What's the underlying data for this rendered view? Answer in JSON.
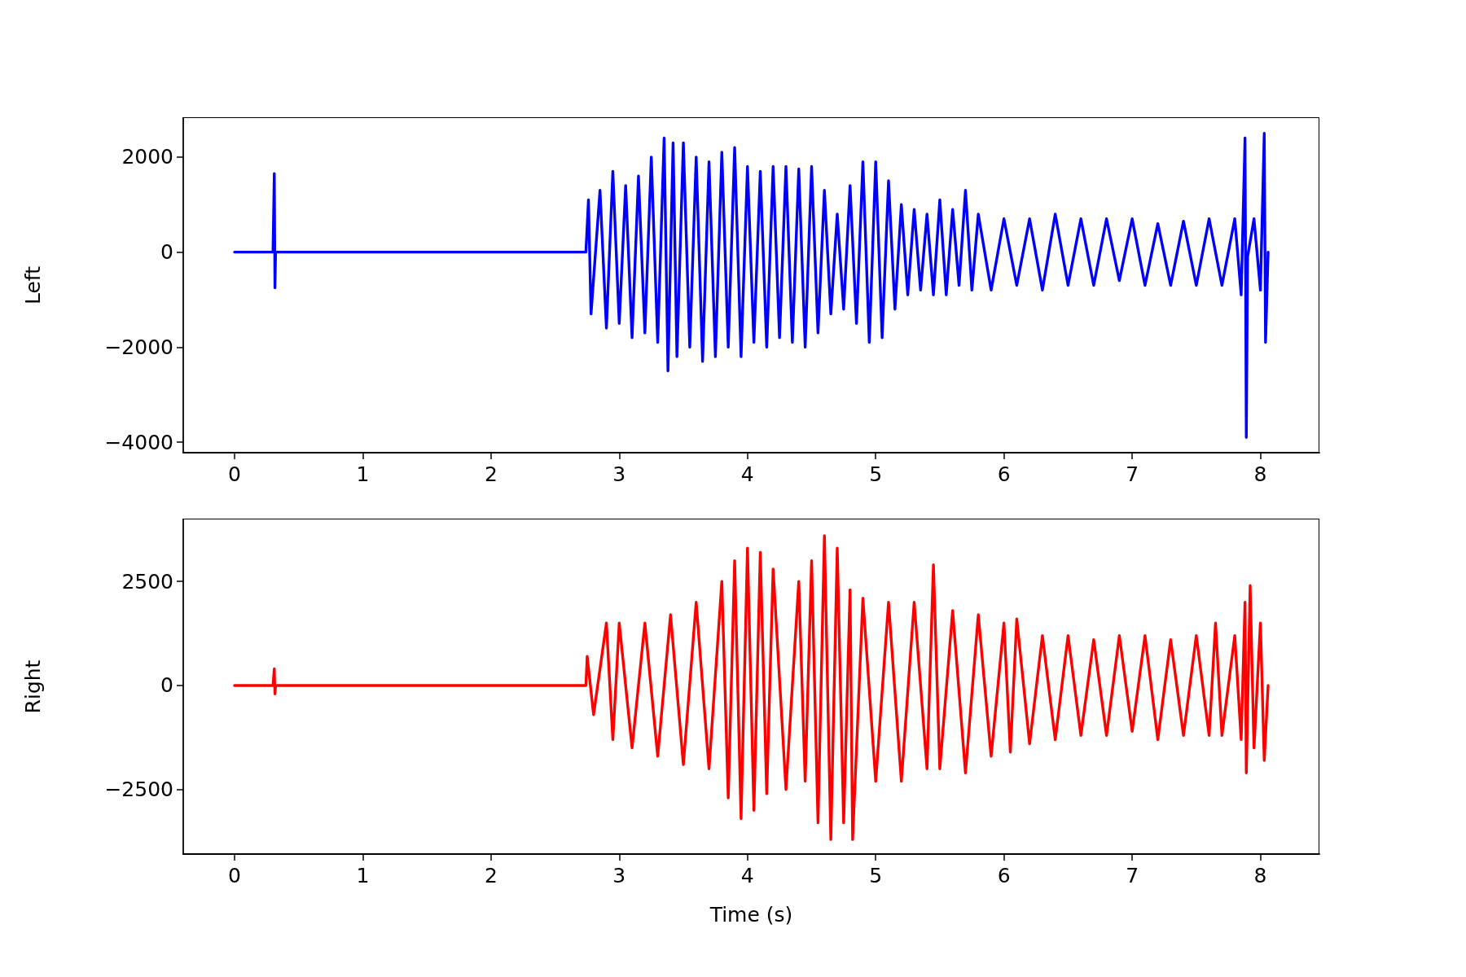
{
  "chart_data": [
    {
      "type": "line",
      "ylabel": "Left",
      "color": "#0000ff",
      "marker": "none",
      "x": [
        0,
        0.3,
        0.31,
        0.315,
        0.32,
        1.2,
        2.74,
        2.76,
        2.78,
        2.85,
        2.9,
        2.95,
        3.0,
        3.05,
        3.1,
        3.15,
        3.2,
        3.25,
        3.3,
        3.35,
        3.38,
        3.42,
        3.45,
        3.5,
        3.55,
        3.6,
        3.65,
        3.7,
        3.75,
        3.8,
        3.85,
        3.9,
        3.95,
        4.0,
        4.05,
        4.1,
        4.15,
        4.2,
        4.25,
        4.3,
        4.35,
        4.4,
        4.45,
        4.5,
        4.55,
        4.6,
        4.65,
        4.7,
        4.75,
        4.8,
        4.85,
        4.9,
        4.95,
        5.0,
        5.05,
        5.1,
        5.15,
        5.2,
        5.25,
        5.3,
        5.35,
        5.4,
        5.45,
        5.5,
        5.55,
        5.6,
        5.65,
        5.7,
        5.75,
        5.8,
        5.9,
        6.0,
        6.1,
        6.2,
        6.3,
        6.4,
        6.5,
        6.6,
        6.7,
        6.8,
        6.9,
        7.0,
        7.1,
        7.2,
        7.3,
        7.4,
        7.5,
        7.6,
        7.7,
        7.8,
        7.85,
        7.88,
        7.89,
        7.9,
        7.95,
        8.0,
        8.03,
        8.04,
        8.06
      ],
      "values": [
        0,
        0,
        1650,
        -750,
        0,
        0,
        0,
        1100,
        -1300,
        1300,
        -1600,
        1700,
        -1500,
        1400,
        -1800,
        1600,
        -1700,
        2000,
        -1900,
        2400,
        -2500,
        2300,
        -2200,
        2300,
        -2000,
        2000,
        -2300,
        1900,
        -2200,
        2100,
        -2000,
        2200,
        -2200,
        1800,
        -1900,
        1700,
        -2000,
        1800,
        -1800,
        1800,
        -1900,
        1750,
        -2000,
        1800,
        -1700,
        1300,
        -1300,
        800,
        -1200,
        1400,
        -1500,
        1900,
        -1900,
        1900,
        -1800,
        1500,
        -1200,
        1000,
        -900,
        900,
        -800,
        800,
        -900,
        1100,
        -900,
        900,
        -700,
        1300,
        -800,
        800,
        -800,
        700,
        -700,
        700,
        -800,
        800,
        -700,
        700,
        -700,
        700,
        -600,
        700,
        -700,
        600,
        -700,
        650,
        -700,
        700,
        -700,
        700,
        -900,
        2400,
        -3900,
        -100,
        700,
        -800,
        2500,
        -1900,
        0
      ],
      "xlim": [
        -0.4,
        8.46
      ],
      "ylim": [
        -4220,
        2820
      ],
      "xticks": [
        0,
        1,
        2,
        3,
        4,
        5,
        6,
        7,
        8
      ],
      "yticks": [
        {
          "value": -4000,
          "label": "−4000"
        },
        {
          "value": -2000,
          "label": "−2000"
        },
        0,
        2000
      ]
    },
    {
      "type": "line",
      "ylabel": "Right",
      "xlabel": "Time (s)",
      "color": "#ff0000",
      "marker": "none",
      "x": [
        0,
        0.3,
        0.31,
        0.315,
        0.32,
        1.2,
        2.74,
        2.75,
        2.8,
        2.9,
        2.95,
        3.0,
        3.1,
        3.2,
        3.3,
        3.4,
        3.5,
        3.6,
        3.7,
        3.8,
        3.85,
        3.9,
        3.95,
        4.0,
        4.05,
        4.1,
        4.15,
        4.2,
        4.3,
        4.4,
        4.45,
        4.5,
        4.55,
        4.6,
        4.65,
        4.7,
        4.75,
        4.8,
        4.82,
        4.9,
        5.0,
        5.1,
        5.2,
        5.3,
        5.4,
        5.45,
        5.5,
        5.6,
        5.7,
        5.8,
        5.9,
        6.0,
        6.05,
        6.1,
        6.2,
        6.3,
        6.4,
        6.5,
        6.6,
        6.7,
        6.8,
        6.9,
        7.0,
        7.1,
        7.2,
        7.3,
        7.4,
        7.5,
        7.6,
        7.65,
        7.7,
        7.8,
        7.85,
        7.88,
        7.89,
        7.92,
        7.95,
        8.0,
        8.03,
        8.06
      ],
      "values": [
        0,
        0,
        400,
        -200,
        0,
        0,
        0,
        700,
        -700,
        1500,
        -1300,
        1500,
        -1500,
        1500,
        -1700,
        1700,
        -1900,
        2000,
        -2000,
        2500,
        -2700,
        3000,
        -3200,
        3300,
        -3000,
        3200,
        -2600,
        2800,
        -2500,
        2500,
        -2300,
        3000,
        -3300,
        3600,
        -3700,
        3300,
        -3300,
        2300,
        -3700,
        2100,
        -2300,
        2000,
        -2300,
        2000,
        -2000,
        2900,
        -2000,
        1800,
        -2100,
        1700,
        -1700,
        1500,
        -1600,
        1600,
        -1400,
        1200,
        -1300,
        1200,
        -1200,
        1100,
        -1200,
        1200,
        -1100,
        1200,
        -1300,
        1100,
        -1200,
        1200,
        -1200,
        1500,
        -1200,
        1200,
        -1300,
        2000,
        -2100,
        2400,
        -1500,
        1500,
        -1800,
        0
      ],
      "xlim": [
        -0.4,
        8.46
      ],
      "ylim": [
        -4050,
        3990
      ],
      "xticks": [
        0,
        1,
        2,
        3,
        4,
        5,
        6,
        7,
        8
      ],
      "yticks": [
        {
          "value": -2500,
          "label": "−2500"
        },
        0,
        2500
      ]
    }
  ]
}
